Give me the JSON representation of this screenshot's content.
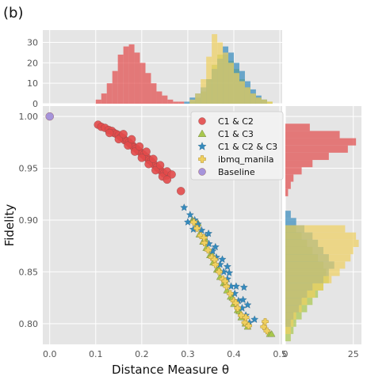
{
  "panel_label": "(b)",
  "colors": {
    "c1c2": "#e24a4a",
    "c1c3": "#a8c74d",
    "c1c2c3": "#348abd",
    "ibmq": "#f0d060",
    "baseline": "#9d8ad8",
    "panel_bg": "#e5e5e5",
    "grid": "#ffffff"
  },
  "chart_data": [
    {
      "type": "scatter",
      "xlabel": "Distance Measure θ",
      "ylabel": "Fidelity",
      "xlim": [
        -0.015,
        0.505
      ],
      "ylim": [
        0.78,
        1.01
      ],
      "xticks": [
        0.0,
        0.1,
        0.2,
        0.3,
        0.4,
        0.5
      ],
      "xtick_labels": [
        "0.0",
        "0.1",
        "0.2",
        "0.3",
        "0.4",
        "0.5"
      ],
      "yticks": [
        0.8,
        0.85,
        0.9,
        0.95,
        1.0
      ],
      "ytick_labels": [
        "0.80",
        "0.85",
        "0.90",
        "0.95",
        "1.00"
      ],
      "grid": true,
      "legend_position": "top-right",
      "series": [
        {
          "name": "C1 & C2",
          "marker": "circle",
          "color": "#e24a4a",
          "points": [
            [
              0.105,
              0.992
            ],
            [
              0.112,
              0.99
            ],
            [
              0.12,
              0.989
            ],
            [
              0.128,
              0.987
            ],
            [
              0.135,
              0.986
            ],
            [
              0.14,
              0.984
            ],
            [
              0.145,
              0.983
            ],
            [
              0.15,
              0.982
            ],
            [
              0.155,
              0.98
            ],
            [
              0.16,
              0.979
            ],
            [
              0.163,
              0.977
            ],
            [
              0.168,
              0.976
            ],
            [
              0.172,
              0.975
            ],
            [
              0.176,
              0.973
            ],
            [
              0.18,
              0.972
            ],
            [
              0.183,
              0.97
            ],
            [
              0.188,
              0.969
            ],
            [
              0.192,
              0.967
            ],
            [
              0.196,
              0.966
            ],
            [
              0.2,
              0.964
            ],
            [
              0.204,
              0.963
            ],
            [
              0.208,
              0.961
            ],
            [
              0.212,
              0.96
            ],
            [
              0.216,
              0.958
            ],
            [
              0.22,
              0.957
            ],
            [
              0.224,
              0.955
            ],
            [
              0.228,
              0.953
            ],
            [
              0.233,
              0.951
            ],
            [
              0.238,
              0.949
            ],
            [
              0.243,
              0.947
            ],
            [
              0.248,
              0.945
            ],
            [
              0.254,
              0.943
            ],
            [
              0.13,
              0.984
            ],
            [
              0.15,
              0.978
            ],
            [
              0.17,
              0.972
            ],
            [
              0.185,
              0.966
            ],
            [
              0.2,
              0.96
            ],
            [
              0.215,
              0.954
            ],
            [
              0.23,
              0.948
            ],
            [
              0.245,
              0.942
            ],
            [
              0.16,
              0.983
            ],
            [
              0.178,
              0.978
            ],
            [
              0.195,
              0.971
            ],
            [
              0.21,
              0.966
            ],
            [
              0.225,
              0.959
            ],
            [
              0.24,
              0.953
            ],
            [
              0.255,
              0.947
            ],
            [
              0.265,
              0.944
            ],
            [
              0.255,
              0.939
            ],
            [
              0.285,
              0.928
            ]
          ]
        },
        {
          "name": "C1 & C3",
          "marker": "triangle",
          "color": "#a8c74d",
          "points": [
            [
              0.31,
              0.9
            ],
            [
              0.318,
              0.893
            ],
            [
              0.325,
              0.886
            ],
            [
              0.333,
              0.879
            ],
            [
              0.34,
              0.873
            ],
            [
              0.348,
              0.866
            ],
            [
              0.355,
              0.859
            ],
            [
              0.363,
              0.852
            ],
            [
              0.37,
              0.845
            ],
            [
              0.378,
              0.839
            ],
            [
              0.385,
              0.832
            ],
            [
              0.393,
              0.826
            ],
            [
              0.4,
              0.819
            ],
            [
              0.408,
              0.813
            ],
            [
              0.416,
              0.806
            ],
            [
              0.425,
              0.8
            ],
            [
              0.322,
              0.897
            ],
            [
              0.337,
              0.882
            ],
            [
              0.352,
              0.867
            ],
            [
              0.367,
              0.853
            ],
            [
              0.382,
              0.839
            ],
            [
              0.397,
              0.825
            ],
            [
              0.412,
              0.812
            ],
            [
              0.43,
              0.797
            ],
            [
              0.478,
              0.79
            ],
            [
              0.482,
              0.79
            ]
          ]
        },
        {
          "name": "C1 & C2 & C3",
          "marker": "star",
          "color": "#348abd",
          "points": [
            [
              0.292,
              0.912
            ],
            [
              0.305,
              0.905
            ],
            [
              0.315,
              0.9
            ],
            [
              0.322,
              0.896
            ],
            [
              0.33,
              0.89
            ],
            [
              0.338,
              0.884
            ],
            [
              0.346,
              0.877
            ],
            [
              0.354,
              0.87
            ],
            [
              0.362,
              0.864
            ],
            [
              0.37,
              0.857
            ],
            [
              0.378,
              0.85
            ],
            [
              0.386,
              0.843
            ],
            [
              0.394,
              0.836
            ],
            [
              0.402,
              0.829
            ],
            [
              0.41,
              0.822
            ],
            [
              0.418,
              0.815
            ],
            [
              0.426,
              0.808
            ],
            [
              0.434,
              0.801
            ],
            [
              0.345,
              0.887
            ],
            [
              0.36,
              0.874
            ],
            [
              0.375,
              0.862
            ],
            [
              0.39,
              0.849
            ],
            [
              0.405,
              0.836
            ],
            [
              0.42,
              0.823
            ],
            [
              0.3,
              0.898
            ],
            [
              0.312,
              0.891
            ],
            [
              0.386,
              0.855
            ],
            [
              0.422,
              0.835
            ],
            [
              0.43,
              0.818
            ],
            [
              0.445,
              0.804
            ]
          ]
        },
        {
          "name": "ibmq_manila",
          "marker": "plus",
          "color": "#f0d060",
          "points": [
            [
              0.313,
              0.898
            ],
            [
              0.32,
              0.892
            ],
            [
              0.328,
              0.885
            ],
            [
              0.336,
              0.878
            ],
            [
              0.344,
              0.871
            ],
            [
              0.352,
              0.864
            ],
            [
              0.36,
              0.857
            ],
            [
              0.368,
              0.85
            ],
            [
              0.376,
              0.843
            ],
            [
              0.384,
              0.836
            ],
            [
              0.392,
              0.829
            ],
            [
              0.4,
              0.822
            ],
            [
              0.408,
              0.815
            ],
            [
              0.416,
              0.808
            ],
            [
              0.424,
              0.801
            ],
            [
              0.432,
              0.798
            ],
            [
              0.335,
              0.883
            ],
            [
              0.358,
              0.862
            ],
            [
              0.381,
              0.841
            ],
            [
              0.404,
              0.82
            ],
            [
              0.426,
              0.806
            ],
            [
              0.465,
              0.797
            ],
            [
              0.472,
              0.793
            ],
            [
              0.468,
              0.802
            ]
          ]
        },
        {
          "name": "Baseline",
          "marker": "circle",
          "color": "#9d8ad8",
          "points": [
            [
              0.0,
              1.0
            ]
          ]
        }
      ]
    },
    {
      "type": "bar",
      "orientation": "vertical",
      "position": "top",
      "yticks": [
        0,
        10,
        20,
        30
      ],
      "ytick_labels": [
        "0",
        "10",
        "20",
        "30"
      ],
      "ylim": [
        0,
        36
      ],
      "bin_width": 0.012,
      "series": [
        {
          "name": "C1 & C2",
          "color": "#e24a4a",
          "bins_start": [
            0.1,
            0.112,
            0.124,
            0.136,
            0.148,
            0.16,
            0.172,
            0.184,
            0.196,
            0.208,
            0.22,
            0.232,
            0.244,
            0.256,
            0.268,
            0.28
          ],
          "counts": [
            2,
            5,
            10,
            16,
            24,
            28,
            29,
            25,
            20,
            15,
            10,
            6,
            4,
            2,
            1,
            1
          ]
        },
        {
          "name": "C1 & C3",
          "color": "#a8c74d",
          "bins_start": [
            0.304,
            0.316,
            0.328,
            0.34,
            0.352,
            0.364,
            0.376,
            0.388,
            0.4,
            0.412,
            0.424,
            0.436,
            0.448,
            0.46,
            0.472
          ],
          "counts": [
            1,
            3,
            6,
            12,
            19,
            24,
            24,
            21,
            17,
            12,
            8,
            5,
            3,
            2,
            1
          ]
        },
        {
          "name": "C1 & C2 & C3",
          "color": "#348abd",
          "bins_start": [
            0.292,
            0.304,
            0.316,
            0.328,
            0.34,
            0.352,
            0.364,
            0.376,
            0.388,
            0.4,
            0.412,
            0.424,
            0.436,
            0.448,
            0.46
          ],
          "counts": [
            1,
            3,
            5,
            8,
            12,
            17,
            22,
            28,
            25,
            20,
            16,
            11,
            7,
            4,
            2
          ]
        },
        {
          "name": "ibmq_manila",
          "color": "#f0d060",
          "bins_start": [
            0.304,
            0.316,
            0.328,
            0.34,
            0.352,
            0.364,
            0.376,
            0.388,
            0.4,
            0.412,
            0.424,
            0.436,
            0.448,
            0.46,
            0.472
          ],
          "counts": [
            2,
            5,
            12,
            23,
            34,
            30,
            25,
            20,
            15,
            11,
            8,
            5,
            3,
            2,
            1
          ]
        }
      ]
    },
    {
      "type": "bar",
      "orientation": "horizontal",
      "position": "right",
      "xticks": [
        0,
        25
      ],
      "xtick_labels": [
        "0",
        "25"
      ],
      "xlim": [
        0,
        28
      ],
      "bin_height": 0.007,
      "series": [
        {
          "name": "C1 & C2",
          "color": "#e24a4a",
          "bins_start": [
            0.923,
            0.93,
            0.937,
            0.944,
            0.951,
            0.958,
            0.965,
            0.972,
            0.979,
            0.986
          ],
          "counts": [
            1,
            2,
            3,
            6,
            10,
            16,
            23,
            26,
            20,
            9
          ]
        },
        {
          "name": "C1 & C3",
          "color": "#a8c74d",
          "bins_start": [
            0.783,
            0.79,
            0.797,
            0.804,
            0.811,
            0.818,
            0.825,
            0.832,
            0.839,
            0.846,
            0.853,
            0.86,
            0.867,
            0.874,
            0.881,
            0.888
          ],
          "counts": [
            2,
            3,
            4,
            6,
            8,
            10,
            12,
            14,
            16,
            15,
            14,
            12,
            10,
            8,
            6,
            4
          ]
        },
        {
          "name": "C1 & C2 & C3",
          "color": "#348abd",
          "bins_start": [
            0.797,
            0.804,
            0.811,
            0.818,
            0.825,
            0.832,
            0.839,
            0.846,
            0.853,
            0.86,
            0.867,
            0.874,
            0.881,
            0.888,
            0.895,
            0.902
          ],
          "counts": [
            2,
            3,
            5,
            6,
            8,
            10,
            14,
            16,
            18,
            16,
            14,
            12,
            10,
            7,
            4,
            2
          ]
        },
        {
          "name": "ibmq_manila",
          "color": "#f0d060",
          "bins_start": [
            0.79,
            0.797,
            0.804,
            0.811,
            0.818,
            0.825,
            0.832,
            0.839,
            0.846,
            0.853,
            0.86,
            0.867,
            0.874,
            0.881,
            0.888
          ],
          "counts": [
            2,
            3,
            4,
            6,
            8,
            11,
            14,
            17,
            20,
            22,
            24,
            25,
            27,
            26,
            22
          ]
        }
      ]
    }
  ]
}
